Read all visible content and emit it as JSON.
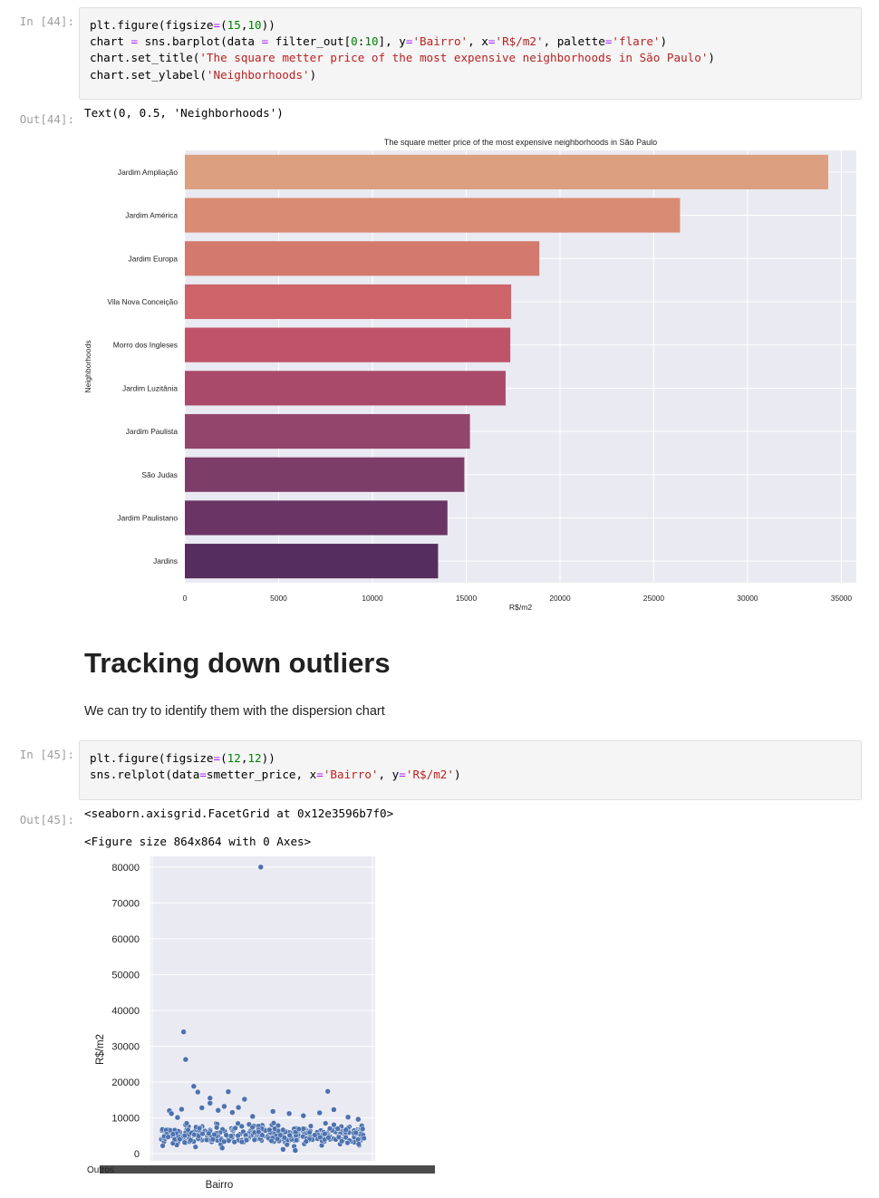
{
  "cells": [
    {
      "in_prompt": "In [44]:",
      "out_prompt": "Out[44]:",
      "code": [
        [
          {
            "t": "plt.figure(figsize"
          },
          {
            "t": "=",
            "c": "k-op"
          },
          {
            "t": "("
          },
          {
            "t": "15",
            "c": "k-num"
          },
          {
            "t": ","
          },
          {
            "t": "10",
            "c": "k-num"
          },
          {
            "t": "))"
          }
        ],
        [
          {
            "t": "chart "
          },
          {
            "t": "=",
            "c": "k-op"
          },
          {
            "t": " sns.barplot(data "
          },
          {
            "t": "=",
            "c": "k-op"
          },
          {
            "t": " filter_out["
          },
          {
            "t": "0",
            "c": "k-num"
          },
          {
            "t": ":"
          },
          {
            "t": "10",
            "c": "k-num"
          },
          {
            "t": "], y"
          },
          {
            "t": "=",
            "c": "k-op"
          },
          {
            "t": "'Bairro'",
            "c": "k-str"
          },
          {
            "t": ", x"
          },
          {
            "t": "=",
            "c": "k-op"
          },
          {
            "t": "'R$/m2'",
            "c": "k-str"
          },
          {
            "t": ", palette"
          },
          {
            "t": "=",
            "c": "k-op"
          },
          {
            "t": "'flare'",
            "c": "k-str"
          },
          {
            "t": ")"
          }
        ],
        [
          {
            "t": "chart.set_title("
          },
          {
            "t": "'The square metter price of the most expensive neighborhoods in São Paulo'",
            "c": "k-str"
          },
          {
            "t": ")"
          }
        ],
        [
          {
            "t": "chart.set_ylabel("
          },
          {
            "t": "'Neighborhoods'",
            "c": "k-str"
          },
          {
            "t": ")"
          }
        ]
      ],
      "output_text": "Text(0, 0.5, 'Neighborhoods')"
    },
    {
      "in_prompt": "In [45]:",
      "out_prompt": "Out[45]:",
      "code": [
        [
          {
            "t": "plt.figure(figsize"
          },
          {
            "t": "=",
            "c": "k-op"
          },
          {
            "t": "("
          },
          {
            "t": "12",
            "c": "k-num"
          },
          {
            "t": ","
          },
          {
            "t": "12",
            "c": "k-num"
          },
          {
            "t": "))"
          }
        ],
        [
          {
            "t": "sns.relplot(data"
          },
          {
            "t": "=",
            "c": "k-op"
          },
          {
            "t": "smetter_price, x"
          },
          {
            "t": "=",
            "c": "k-op"
          },
          {
            "t": "'Bairro'",
            "c": "k-str"
          },
          {
            "t": ", y"
          },
          {
            "t": "=",
            "c": "k-op"
          },
          {
            "t": "'R$/m2'",
            "c": "k-str"
          },
          {
            "t": ")"
          }
        ]
      ],
      "output_text": "<seaborn.axisgrid.FacetGrid at 0x12e3596b7f0>",
      "output_text2": "<Figure size 864x864 with 0 Axes>"
    }
  ],
  "markdown": {
    "heading": "Tracking down outliers",
    "paragraph": "We can try to identify them with the dispersion chart"
  },
  "chart_data": [
    {
      "type": "bar",
      "orientation": "horizontal",
      "title": "The square metter price of the most expensive neighborhoods in São Paulo",
      "xlabel": "R$/m2",
      "ylabel": "Neighborhoods",
      "xlim": [
        0,
        35800
      ],
      "xticks": [
        0,
        5000,
        10000,
        15000,
        20000,
        25000,
        30000,
        35000
      ],
      "grid": true,
      "categories": [
        "Jardim Ampliação",
        "Jardim América",
        "Jardim Europa",
        "Vila Nova Conceição",
        "Morro dos Ingleses",
        "Jardim Luzitânia",
        "Jardim Paulista",
        "São Judas",
        "Jardim Paulistano",
        "Jardins"
      ],
      "values": [
        34300,
        26400,
        18900,
        17400,
        17350,
        17100,
        15200,
        14900,
        14000,
        13500
      ],
      "colors": [
        "#dc9f7f",
        "#d98b73",
        "#d4796d",
        "#cc6469",
        "#bf5469",
        "#a94a6a",
        "#93456c",
        "#7d3d69",
        "#6a3565",
        "#552e5d"
      ]
    },
    {
      "type": "scatter",
      "xlabel": "Bairro",
      "ylabel": "R$/m2",
      "ylim": [
        -2000,
        83000
      ],
      "yticks": [
        0,
        10000,
        20000,
        30000,
        40000,
        50000,
        60000,
        70000,
        80000
      ],
      "grid": true,
      "point_color": "#4c72b0",
      "x_tick_label_fragment": "Outros",
      "points": [
        {
          "x": 0.49,
          "y": 80000
        },
        {
          "x": 0.11,
          "y": 34000
        },
        {
          "x": 0.12,
          "y": 26300
        },
        {
          "x": 0.16,
          "y": 18800
        },
        {
          "x": 0.18,
          "y": 17200
        },
        {
          "x": 0.24,
          "y": 15500
        },
        {
          "x": 0.24,
          "y": 14100
        },
        {
          "x": 0.33,
          "y": 17300
        },
        {
          "x": 0.41,
          "y": 15200
        },
        {
          "x": 0.82,
          "y": 17400
        },
        {
          "x": 0.04,
          "y": 12000
        },
        {
          "x": 0.05,
          "y": 11200
        },
        {
          "x": 0.1,
          "y": 12400
        },
        {
          "x": 0.2,
          "y": 12800
        },
        {
          "x": 0.28,
          "y": 12100
        },
        {
          "x": 0.31,
          "y": 13200
        },
        {
          "x": 0.35,
          "y": 11500
        },
        {
          "x": 0.38,
          "y": 12900
        },
        {
          "x": 0.55,
          "y": 11800
        },
        {
          "x": 0.63,
          "y": 11200
        },
        {
          "x": 0.7,
          "y": 10600
        },
        {
          "x": 0.78,
          "y": 11400
        },
        {
          "x": 0.85,
          "y": 12300
        },
        {
          "x": 0.92,
          "y": 10200
        },
        {
          "x": 0.97,
          "y": 9600
        },
        {
          "x": 0.6,
          "y": 1200
        },
        {
          "x": 0.66,
          "y": 900
        },
        {
          "x": 0.3,
          "y": 1600
        },
        {
          "x": 0.08,
          "y": 10100
        },
        {
          "x": 0.45,
          "y": 10400
        }
      ],
      "density_band": {
        "count": 380,
        "y_min": 1500,
        "y_max": 9500,
        "y_mean": 4600,
        "seed": 7
      }
    }
  ]
}
